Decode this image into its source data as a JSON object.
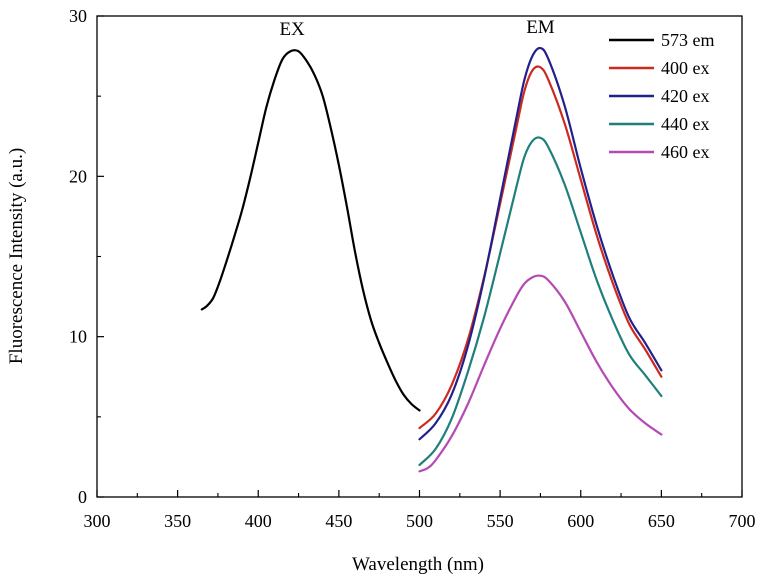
{
  "chart_data": {
    "type": "line",
    "xlabel": "Wavelength (nm)",
    "ylabel": "Fluorescence Intensity (a.u.)",
    "xlim": [
      300,
      700
    ],
    "ylim": [
      0,
      30
    ],
    "xticks": [
      300,
      350,
      400,
      450,
      500,
      550,
      600,
      650,
      700
    ],
    "yticks": [
      0,
      10,
      20,
      30
    ],
    "grid": false,
    "legend_position": "top-right",
    "annotations": [
      {
        "text": "EX",
        "x": 421,
        "y": 29.2
      },
      {
        "text": "EM",
        "x": 575,
        "y": 29.3
      }
    ],
    "series": [
      {
        "name": "573 em",
        "color": "#000000",
        "x": [
          365,
          368,
          372,
          376,
          380,
          385,
          390,
          395,
          400,
          405,
          410,
          415,
          420,
          425,
          430,
          435,
          440,
          445,
          450,
          455,
          460,
          465,
          470,
          475,
          480,
          485,
          490,
          495,
          500
        ],
        "y": [
          11.7,
          11.9,
          12.4,
          13.4,
          14.6,
          16.2,
          17.9,
          19.9,
          22.1,
          24.3,
          26.0,
          27.3,
          27.8,
          27.8,
          27.2,
          26.3,
          25.0,
          23.0,
          20.7,
          18.1,
          15.3,
          12.9,
          11.0,
          9.6,
          8.4,
          7.3,
          6.4,
          5.8,
          5.4
        ]
      },
      {
        "name": "400 ex",
        "color": "#cc2a1e",
        "x": [
          500,
          510,
          520,
          530,
          540,
          550,
          560,
          565,
          570,
          575,
          580,
          590,
          600,
          610,
          620,
          630,
          640,
          650
        ],
        "y": [
          4.3,
          5.2,
          7.0,
          9.8,
          13.7,
          18.3,
          23.0,
          25.3,
          26.6,
          26.8,
          26.0,
          23.3,
          19.8,
          16.3,
          13.3,
          10.8,
          9.2,
          7.5
        ]
      },
      {
        "name": "420 ex",
        "color": "#22218c",
        "x": [
          500,
          510,
          520,
          530,
          540,
          550,
          560,
          565,
          570,
          575,
          580,
          590,
          600,
          610,
          620,
          630,
          640,
          650
        ],
        "y": [
          3.6,
          4.6,
          6.4,
          9.4,
          13.6,
          18.6,
          23.6,
          26.0,
          27.5,
          28.0,
          27.3,
          24.4,
          20.5,
          16.9,
          13.8,
          11.2,
          9.6,
          7.9
        ]
      },
      {
        "name": "440 ex",
        "color": "#1f7f7a",
        "x": [
          500,
          510,
          520,
          530,
          540,
          550,
          560,
          565,
          570,
          575,
          580,
          590,
          600,
          610,
          620,
          630,
          640,
          650
        ],
        "y": [
          2.0,
          3.0,
          4.9,
          7.8,
          11.2,
          15.2,
          19.3,
          21.2,
          22.2,
          22.4,
          21.8,
          19.5,
          16.5,
          13.5,
          11.0,
          8.9,
          7.6,
          6.3
        ]
      },
      {
        "name": "460 ex",
        "color": "#b44bb3",
        "x": [
          500,
          505,
          510,
          520,
          530,
          540,
          550,
          560,
          565,
          570,
          575,
          580,
          590,
          600,
          610,
          620,
          630,
          640,
          650
        ],
        "y": [
          1.6,
          1.8,
          2.3,
          3.8,
          5.8,
          8.2,
          10.5,
          12.5,
          13.3,
          13.7,
          13.8,
          13.5,
          12.2,
          10.3,
          8.4,
          6.8,
          5.5,
          4.6,
          3.9
        ]
      }
    ]
  }
}
